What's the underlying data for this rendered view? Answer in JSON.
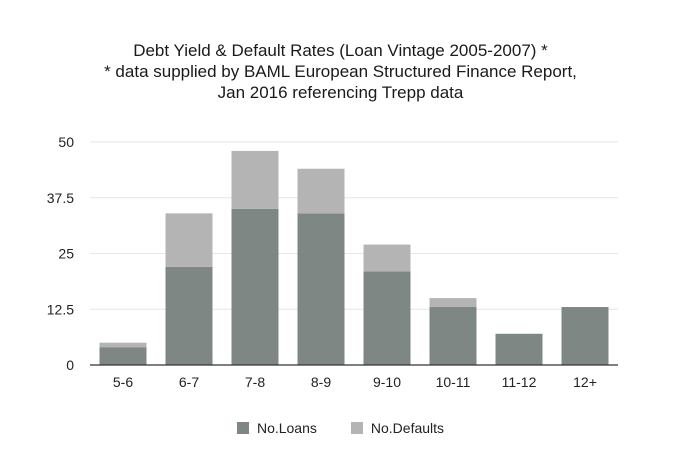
{
  "chart_data": {
    "type": "bar",
    "stacked": true,
    "title_lines": [
      "Debt Yield & Default Rates (Loan Vintage 2005-2007) *",
      "* data supplied by BAML European Structured Finance Report,",
      "Jan 2016 referencing Trepp data"
    ],
    "categories": [
      "5-6",
      "6-7",
      "7-8",
      "8-9",
      "9-10",
      "10-11",
      "11-12",
      "12+"
    ],
    "series": [
      {
        "name": "No.Loans",
        "color": "#7f8784",
        "values": [
          4,
          22,
          35,
          34,
          21,
          13,
          7,
          13
        ]
      },
      {
        "name": "No.Defaults",
        "color": "#b4b4b4",
        "values": [
          1,
          12,
          13,
          10,
          6,
          2,
          0,
          0
        ]
      }
    ],
    "yticks": [
      "0",
      "12.5",
      "25",
      "37.5",
      "50"
    ],
    "ylim": [
      0,
      50
    ],
    "grid": true,
    "legend_position": "bottom"
  }
}
